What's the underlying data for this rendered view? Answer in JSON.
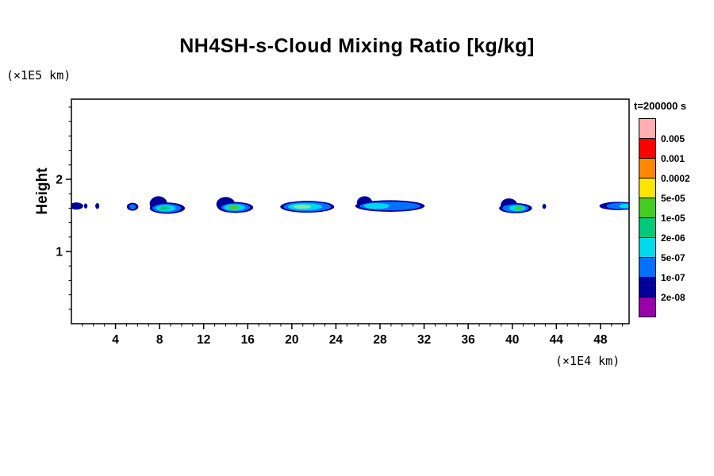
{
  "header": {
    "title": "NH4SH-s-Cloud Mixing Ratio [kg/kg]"
  },
  "axes": {
    "y_unit": "(×1E5 km)",
    "x_unit": "(×1E4 km)",
    "y_label": "Height"
  },
  "legend": {
    "title": "t=200000 s"
  },
  "chart_data": {
    "type": "heatmap",
    "title": "NH4SH-s-Cloud Mixing Ratio [kg/kg]",
    "xlabel": "(×1E4 km)",
    "ylabel": "Height (×1E5 km)",
    "xlim": [
      0,
      50.6
    ],
    "ylim": [
      0,
      3.11
    ],
    "x_major_ticks": [
      4,
      8,
      12,
      16,
      20,
      24,
      28,
      32,
      36,
      40,
      44,
      48
    ],
    "x_minor_step": 1,
    "y_major_ticks": [
      1,
      2
    ],
    "y_minor_step": 0.2,
    "grid": false,
    "legend_position": "right",
    "legend_title": "t=200000 s",
    "colorbar_boundaries": [
      "0.005",
      "0.001",
      "0.0002",
      "5e-05",
      "1e-05",
      "2e-06",
      "5e-07",
      "1e-07",
      "2e-08"
    ],
    "colorbar_colors": [
      "#ffb0b0",
      "#ff0000",
      "#ff8800",
      "#ffe400",
      "#44cc22",
      "#00c97a",
      "#00d8ee",
      "#0072ff",
      "#000099",
      "#9900aa"
    ],
    "cloud_band_height": 1.62,
    "blobs": [
      {
        "cx": 0.45,
        "cy": 1.63,
        "layers": [
          {
            "c": "#000099",
            "rx": 0.62,
            "ry": 0.05
          }
        ]
      },
      {
        "cx": 1.3,
        "cy": 1.63,
        "layers": [
          {
            "c": "#000099",
            "rx": 0.16,
            "ry": 0.035
          }
        ]
      },
      {
        "cx": 2.35,
        "cy": 1.63,
        "layers": [
          {
            "c": "#000099",
            "rx": 0.18,
            "ry": 0.04
          }
        ]
      },
      {
        "cx": 5.55,
        "cy": 1.62,
        "layers": [
          {
            "c": "#000099",
            "rx": 0.52,
            "ry": 0.055
          },
          {
            "c": "#0072ff",
            "rx": 0.3,
            "ry": 0.035
          }
        ]
      },
      {
        "cx": 7.9,
        "cy": 1.66,
        "layers": [
          {
            "c": "#000099",
            "rx": 0.8,
            "ry": 0.105
          }
        ]
      },
      {
        "cx": 8.7,
        "cy": 1.6,
        "layers": [
          {
            "c": "#000099",
            "rx": 1.6,
            "ry": 0.078
          },
          {
            "c": "#0072ff",
            "rx": 1.3,
            "ry": 0.06,
            "dx": -0.05
          },
          {
            "c": "#00d8ee",
            "rx": 0.9,
            "ry": 0.044,
            "dx": -0.15
          },
          {
            "c": "#00c97a",
            "rx": 0.45,
            "ry": 0.028,
            "dx": -0.25
          }
        ]
      },
      {
        "cx": 14.0,
        "cy": 1.655,
        "layers": [
          {
            "c": "#000099",
            "rx": 0.85,
            "ry": 0.1
          }
        ]
      },
      {
        "cx": 14.9,
        "cy": 1.61,
        "layers": [
          {
            "c": "#000099",
            "rx": 1.6,
            "ry": 0.075
          },
          {
            "c": "#0072ff",
            "rx": 1.3,
            "ry": 0.058
          },
          {
            "c": "#00d8ee",
            "rx": 0.95,
            "ry": 0.044,
            "dx": -0.1
          },
          {
            "c": "#44cc22",
            "rx": 0.5,
            "ry": 0.028,
            "dx": -0.15
          }
        ]
      },
      {
        "cx": 21.4,
        "cy": 1.62,
        "layers": [
          {
            "c": "#000099",
            "rx": 2.45,
            "ry": 0.082
          },
          {
            "c": "#0072ff",
            "rx": 2.15,
            "ry": 0.065
          },
          {
            "c": "#00d8ee",
            "rx": 1.55,
            "ry": 0.048,
            "dx": -0.2
          },
          {
            "c": "#7fe8a0",
            "rx": 0.8,
            "ry": 0.028,
            "dx": -0.45
          }
        ]
      },
      {
        "cx": 26.6,
        "cy": 1.675,
        "layers": [
          {
            "c": "#000099",
            "rx": 0.7,
            "ry": 0.09
          }
        ]
      },
      {
        "cx": 28.9,
        "cy": 1.63,
        "layers": [
          {
            "c": "#000099",
            "rx": 3.15,
            "ry": 0.08
          },
          {
            "c": "#0072ff",
            "rx": 2.75,
            "ry": 0.06
          },
          {
            "c": "#00d8ee",
            "rx": 1.15,
            "ry": 0.04,
            "dx": -1.2
          }
        ]
      },
      {
        "cx": 39.7,
        "cy": 1.645,
        "layers": [
          {
            "c": "#000099",
            "rx": 0.75,
            "ry": 0.09
          }
        ]
      },
      {
        "cx": 40.3,
        "cy": 1.6,
        "layers": [
          {
            "c": "#000099",
            "rx": 1.5,
            "ry": 0.07
          },
          {
            "c": "#0072ff",
            "rx": 1.2,
            "ry": 0.055
          },
          {
            "c": "#00d8ee",
            "rx": 0.75,
            "ry": 0.04,
            "dx": 0.15
          },
          {
            "c": "#44cc22",
            "rx": 0.35,
            "ry": 0.025,
            "dx": 0.3
          }
        ]
      },
      {
        "cx": 42.9,
        "cy": 1.625,
        "layers": [
          {
            "c": "#000099",
            "rx": 0.17,
            "ry": 0.035
          }
        ]
      },
      {
        "cx": 49.6,
        "cy": 1.63,
        "layers": [
          {
            "c": "#000099",
            "rx": 1.7,
            "ry": 0.058
          },
          {
            "c": "#0072ff",
            "rx": 1.3,
            "ry": 0.044,
            "dx": 0.25
          },
          {
            "c": "#00d8ee",
            "rx": 0.55,
            "ry": 0.03,
            "dx": 0.65
          }
        ]
      }
    ]
  }
}
